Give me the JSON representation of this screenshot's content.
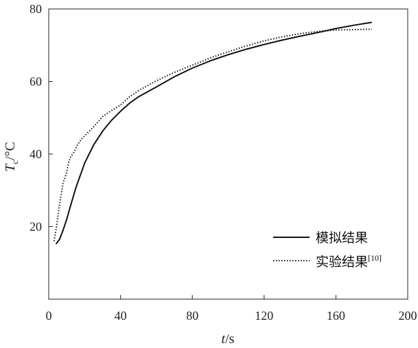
{
  "chart_data": {
    "type": "line",
    "xlabel": {
      "italic": "t",
      "unit": "/s"
    },
    "ylabel": {
      "italic": "T",
      "subscript": "c",
      "unit": "/°C"
    },
    "xlim": [
      0,
      200
    ],
    "ylim": [
      0,
      80
    ],
    "x_ticks": [
      0,
      40,
      80,
      120,
      160,
      200
    ],
    "y_ticks": [
      20,
      40,
      60,
      80
    ],
    "x_tick_labels": [
      "0",
      "40",
      "80",
      "120",
      "160",
      "200"
    ],
    "y_tick_labels": [
      "20",
      "40",
      "60",
      "80"
    ],
    "grid": false,
    "legend_position": "bottom-right",
    "series": [
      {
        "name": "模拟结果",
        "style": "solid",
        "color": "#111111",
        "points": [
          [
            4,
            15.2
          ],
          [
            6,
            16.5
          ],
          [
            8,
            19
          ],
          [
            10,
            22
          ],
          [
            12,
            25.5
          ],
          [
            15,
            30.5
          ],
          [
            20,
            37.5
          ],
          [
            25,
            42.5
          ],
          [
            30,
            46.3
          ],
          [
            35,
            49.3
          ],
          [
            40,
            51.8
          ],
          [
            45,
            54
          ],
          [
            50,
            55.8
          ],
          [
            60,
            58.5
          ],
          [
            70,
            61.3
          ],
          [
            80,
            63.7
          ],
          [
            90,
            65.7
          ],
          [
            100,
            67.4
          ],
          [
            110,
            68.9
          ],
          [
            120,
            70.2
          ],
          [
            130,
            71.4
          ],
          [
            140,
            72.5
          ],
          [
            150,
            73.5
          ],
          [
            160,
            74.6
          ],
          [
            170,
            75.5
          ],
          [
            180,
            76.3
          ]
        ]
      },
      {
        "name": "实验结果",
        "name_sup": "[10]",
        "style": "dotted",
        "color": "#111111",
        "points": [
          [
            3,
            16
          ],
          [
            4,
            19
          ],
          [
            5,
            22.5
          ],
          [
            6,
            26
          ],
          [
            7,
            29
          ],
          [
            8,
            32
          ],
          [
            9,
            33.5
          ],
          [
            10,
            35
          ],
          [
            11,
            37.5
          ],
          [
            12,
            39
          ],
          [
            14,
            40.5
          ],
          [
            16,
            42.5
          ],
          [
            18,
            44
          ],
          [
            20,
            45
          ],
          [
            25,
            47.5
          ],
          [
            30,
            50.3
          ],
          [
            35,
            52
          ],
          [
            40,
            53.5
          ],
          [
            45,
            55.8
          ],
          [
            50,
            57.5
          ],
          [
            60,
            60.2
          ],
          [
            70,
            62.5
          ],
          [
            80,
            64.5
          ],
          [
            90,
            66.5
          ],
          [
            100,
            68.2
          ],
          [
            110,
            69.8
          ],
          [
            120,
            71.2
          ],
          [
            130,
            72.3
          ],
          [
            140,
            73.2
          ],
          [
            150,
            73.8
          ],
          [
            160,
            74.2
          ],
          [
            170,
            74.3
          ],
          [
            180,
            74.4
          ]
        ]
      }
    ]
  }
}
